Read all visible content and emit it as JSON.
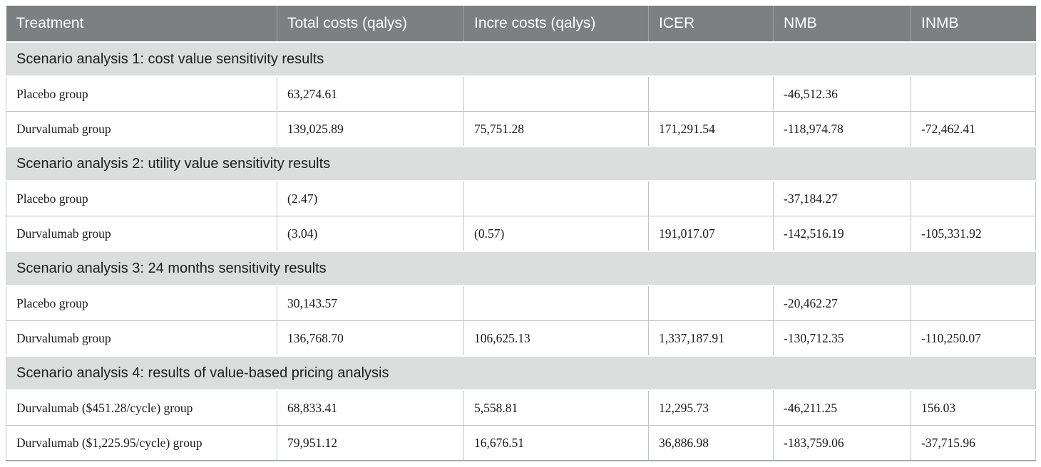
{
  "table": {
    "columns": [
      {
        "label": "Treatment"
      },
      {
        "label": "Total costs (qalys)"
      },
      {
        "label": "Incre costs (qalys)"
      },
      {
        "label": "ICER"
      },
      {
        "label": "NMB"
      },
      {
        "label": "INMB"
      }
    ],
    "sections": [
      {
        "title": "Scenario analysis 1: cost value sensitivity results",
        "rows": [
          [
            "Placebo group",
            "63,274.61",
            "",
            "",
            "-46,512.36",
            ""
          ],
          [
            "Durvalumab group",
            "139,025.89",
            "75,751.28",
            "171,291.54",
            "-118,974.78",
            "-72,462.41"
          ]
        ]
      },
      {
        "title": "Scenario analysis 2: utility value sensitivity results",
        "rows": [
          [
            "Placebo group",
            "(2.47)",
            "",
            "",
            "-37,184.27",
            ""
          ],
          [
            "Durvalumab group",
            "(3.04)",
            "(0.57)",
            "191,017.07",
            "-142,516.19",
            "-105,331.92"
          ]
        ]
      },
      {
        "title": "Scenario analysis 3: 24 months sensitivity results",
        "rows": [
          [
            "Placebo group",
            "30,143.57",
            "",
            "",
            "-20,462.27",
            ""
          ],
          [
            "Durvalumab group",
            "136,768.70",
            "106,625.13",
            "1,337,187.91",
            "-130,712.35",
            "-110,250.07"
          ]
        ]
      },
      {
        "title": "Scenario analysis 4: results of value-based pricing analysis",
        "rows": [
          [
            "Durvalumab ($451.28/cycle) group",
            "68,833.41",
            "5,558.81",
            "12,295.73",
            "-46,211.25",
            "156.03"
          ],
          [
            "Durvalumab ($1,225.95/cycle) group",
            "79,951.12",
            "16,676.51",
            "36,886.98",
            "-183,759.06",
            "-37,715.96"
          ]
        ]
      }
    ],
    "colors": {
      "header_bg": "#7c8080",
      "header_text": "#ffffff",
      "section_bg": "#dcdddd",
      "section_text": "#1d1d1d",
      "body_text": "#1a1a1a",
      "grid_line": "#c3c5c5"
    }
  }
}
